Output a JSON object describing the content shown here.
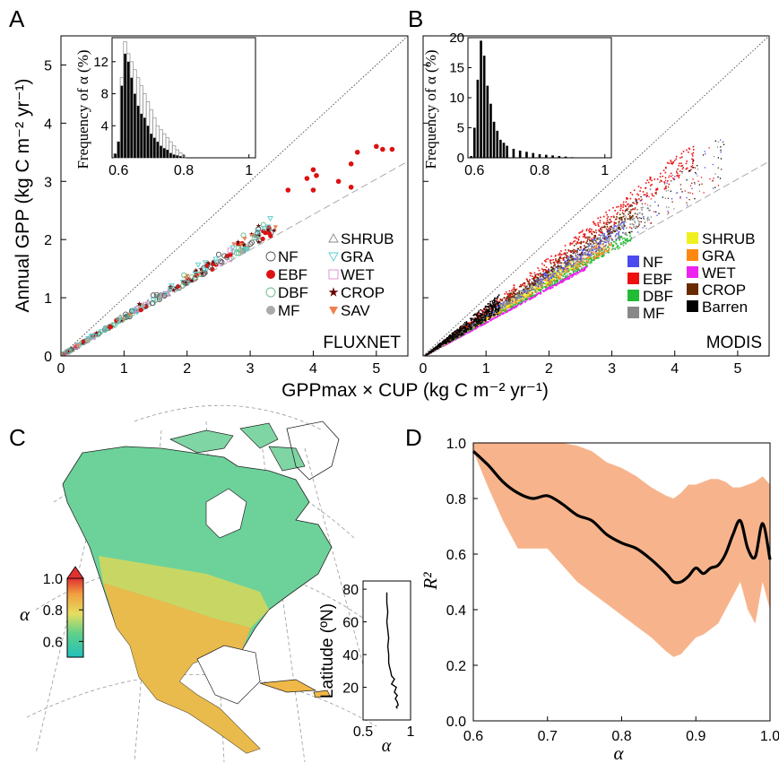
{
  "panels": {
    "A": {
      "letter": "A",
      "tag": "FLUXNET"
    },
    "B": {
      "letter": "B",
      "tag": "MODIS"
    },
    "C": {
      "letter": "C"
    },
    "D": {
      "letter": "D"
    }
  },
  "y_label_main": "Annual GPP (kg C m⁻² yr⁻¹)",
  "x_label_main": "GPPmax × CUP (kg C m⁻² yr⁻¹)",
  "hist_ylabel": "Frequency of α (%)",
  "alpha_symbol": "α",
  "colors": {
    "sample_bar": "#000000",
    "hist_outline": "#999999",
    "band": "#f7b48c",
    "curve": "#000000",
    "EBF": "#dd1111",
    "alpha_low": "#2cc0b0",
    "alpha_mid": "#f0d050",
    "alpha_high": "#e84040"
  },
  "chart_data": [
    {
      "panel": "A",
      "type": "scatter",
      "xlim": [
        0,
        5.5
      ],
      "ylim": [
        0,
        5.5
      ],
      "x_ticks": [
        "0",
        "1",
        "2",
        "3",
        "4",
        "5"
      ],
      "y_ticks": [
        "0",
        "1",
        "2",
        "3",
        "4",
        "5"
      ],
      "reference_lines": [
        "1:1 line (dotted)",
        "lower bound alpha = 0.58 (dashed)"
      ],
      "legend": [
        {
          "name": "NF",
          "marker": "open circle",
          "color": "#555555"
        },
        {
          "name": "EBF",
          "marker": "filled circle",
          "color": "#dd1111"
        },
        {
          "name": "DBF",
          "marker": "open circle",
          "color": "#66bb88"
        },
        {
          "name": "MF",
          "marker": "filled circle",
          "color": "#aaaaaa"
        },
        {
          "name": "SHRUB",
          "marker": "open triangle",
          "color": "#888888"
        },
        {
          "name": "GRA",
          "marker": "open down-triangle",
          "color": "#55cccc"
        },
        {
          "name": "WET",
          "marker": "open square",
          "color": "#dd88cc"
        },
        {
          "name": "CROP",
          "marker": "star",
          "color": "#660000"
        },
        {
          "name": "SAV",
          "marker": "filled down-triangle",
          "color": "#f08050"
        }
      ],
      "highlighted_points": [
        {
          "x": 4.0,
          "y": 3.2
        },
        {
          "x": 4.05,
          "y": 3.1
        },
        {
          "x": 3.9,
          "y": 3.05
        },
        {
          "x": 4.7,
          "y": 3.5
        },
        {
          "x": 4.6,
          "y": 3.3
        },
        {
          "x": 5.0,
          "y": 3.6
        },
        {
          "x": 5.1,
          "y": 3.55
        },
        {
          "x": 5.25,
          "y": 3.55
        },
        {
          "x": 4.4,
          "y": 3.0
        },
        {
          "x": 4.6,
          "y": 2.9
        },
        {
          "x": 3.6,
          "y": 2.85
        },
        {
          "x": 4.0,
          "y": 2.85
        }
      ],
      "inset": {
        "type": "histogram",
        "xlim": [
          0.58,
          1.02
        ],
        "ylim": [
          0,
          15
        ],
        "x_ticks": [
          "0.6",
          "0.8",
          "1"
        ],
        "y_ticks": [
          "4",
          "8",
          "12"
        ],
        "bin_centers": [
          0.59,
          0.6,
          0.61,
          0.62,
          0.63,
          0.64,
          0.65,
          0.66,
          0.67,
          0.68,
          0.69,
          0.7,
          0.71,
          0.72,
          0.73,
          0.74,
          0.75,
          0.76,
          0.77,
          0.78,
          0.79,
          0.8
        ],
        "site_frequency": [
          0.5,
          2,
          9,
          13,
          12,
          10,
          8,
          6.5,
          5.5,
          5,
          4,
          3,
          2.5,
          2,
          1.5,
          1.2,
          1,
          0.6,
          0.4,
          0.3,
          0.2,
          0.1
        ],
        "modis_outline": [
          0.5,
          2,
          10,
          14.5,
          13,
          12,
          11,
          10,
          9,
          8,
          7,
          6,
          5,
          4,
          3.5,
          3,
          2.5,
          2,
          1.5,
          1,
          0.6,
          0.3
        ]
      }
    },
    {
      "panel": "B",
      "type": "scatter",
      "xlim": [
        0,
        5.5
      ],
      "ylim": [
        0,
        5.5
      ],
      "x_ticks": [
        "0",
        "1",
        "2",
        "3",
        "4",
        "5"
      ],
      "legend": [
        {
          "name": "NF",
          "color": "#4a4af0"
        },
        {
          "name": "EBF",
          "color": "#ee1111"
        },
        {
          "name": "DBF",
          "color": "#22bb33"
        },
        {
          "name": "MF",
          "color": "#888888"
        },
        {
          "name": "SHRUB",
          "color": "#f0f020"
        },
        {
          "name": "GRA",
          "color": "#ff8811"
        },
        {
          "name": "WET",
          "color": "#ee22ee"
        },
        {
          "name": "CROP",
          "color": "#6a2a00"
        },
        {
          "name": "Barren",
          "color": "#000000"
        }
      ],
      "inset": {
        "type": "histogram",
        "xlim": [
          0.58,
          1.02
        ],
        "ylim": [
          0,
          20
        ],
        "x_ticks": [
          "0.6",
          "0.8",
          "1"
        ],
        "y_ticks": [
          "0",
          "5",
          "10",
          "15",
          "20"
        ],
        "bin_centers": [
          0.59,
          0.6,
          0.61,
          0.62,
          0.63,
          0.64,
          0.65,
          0.66,
          0.67,
          0.68,
          0.69,
          0.7,
          0.72,
          0.74,
          0.76,
          0.78,
          0.8,
          0.82,
          0.84,
          0.86,
          0.88,
          0.9
        ],
        "frequency": [
          0.3,
          5,
          13,
          19.5,
          17,
          12,
          9,
          6,
          4.5,
          3,
          2.5,
          2,
          1.5,
          1.2,
          1,
          0.8,
          0.6,
          0.5,
          0.4,
          0.3,
          0.2,
          0.1
        ]
      }
    },
    {
      "panel": "C",
      "type": "map",
      "colorbar": {
        "ticks": [
          "0.6",
          "0.8",
          "1.0"
        ],
        "label": "α"
      },
      "profile": {
        "ylabel": "Latitude (ºN)",
        "y_ticks": [
          "20",
          "40",
          "60",
          "80"
        ],
        "x_ticks": [
          "0.5",
          "1"
        ],
        "xlabel": "α",
        "x": [
          0.75,
          0.75,
          0.76,
          0.75,
          0.76,
          0.77,
          0.76,
          0.77,
          0.77,
          0.78,
          0.79,
          0.8,
          0.83,
          0.8,
          0.85,
          0.83,
          0.86,
          0.84,
          0.86,
          0.87,
          0.85,
          0.86
        ],
        "y": [
          78,
          72,
          66,
          60,
          55,
          50,
          45,
          40,
          35,
          32,
          30,
          27,
          25,
          22,
          20,
          17,
          15,
          13,
          11,
          9,
          8,
          7
        ]
      }
    },
    {
      "panel": "D",
      "type": "line",
      "xlabel": "α",
      "ylabel": "R²",
      "xlim": [
        0.6,
        1.0
      ],
      "ylim": [
        0.0,
        1.0
      ],
      "x_ticks": [
        "0.6",
        "0.7",
        "0.8",
        "0.9",
        "1.0"
      ],
      "y_ticks": [
        "0.0",
        "0.2",
        "0.4",
        "0.6",
        "0.8",
        "1.0"
      ],
      "series": [
        {
          "x": [
            0.6,
            0.62,
            0.64,
            0.66,
            0.68,
            0.7,
            0.72,
            0.74,
            0.76,
            0.78,
            0.8,
            0.82,
            0.84,
            0.86,
            0.87,
            0.88,
            0.89,
            0.9,
            0.91,
            0.92,
            0.93,
            0.94,
            0.95,
            0.96,
            0.97,
            0.98,
            0.99,
            1.0
          ],
          "values": [
            0.97,
            0.92,
            0.86,
            0.82,
            0.8,
            0.81,
            0.78,
            0.74,
            0.72,
            0.67,
            0.64,
            0.62,
            0.58,
            0.53,
            0.5,
            0.5,
            0.52,
            0.55,
            0.53,
            0.55,
            0.56,
            0.6,
            0.67,
            0.72,
            0.62,
            0.59,
            0.71,
            0.58
          ]
        }
      ],
      "band": {
        "x": [
          0.6,
          0.62,
          0.64,
          0.66,
          0.68,
          0.7,
          0.72,
          0.74,
          0.76,
          0.78,
          0.8,
          0.82,
          0.84,
          0.86,
          0.87,
          0.88,
          0.89,
          0.9,
          0.91,
          0.92,
          0.93,
          0.94,
          0.95,
          0.96,
          0.97,
          0.98,
          0.99,
          1.0
        ],
        "upper": [
          1.0,
          1.0,
          1.0,
          1.0,
          1.0,
          1.0,
          1.0,
          0.99,
          0.97,
          0.93,
          0.91,
          0.88,
          0.84,
          0.81,
          0.8,
          0.82,
          0.85,
          0.85,
          0.86,
          0.87,
          0.87,
          0.86,
          0.84,
          0.84,
          0.85,
          0.86,
          0.88,
          0.85
        ],
        "lower": [
          0.97,
          0.84,
          0.72,
          0.62,
          0.62,
          0.62,
          0.56,
          0.5,
          0.46,
          0.42,
          0.38,
          0.34,
          0.3,
          0.25,
          0.23,
          0.24,
          0.27,
          0.3,
          0.31,
          0.33,
          0.35,
          0.4,
          0.45,
          0.5,
          0.4,
          0.35,
          0.5,
          0.4
        ]
      }
    }
  ]
}
